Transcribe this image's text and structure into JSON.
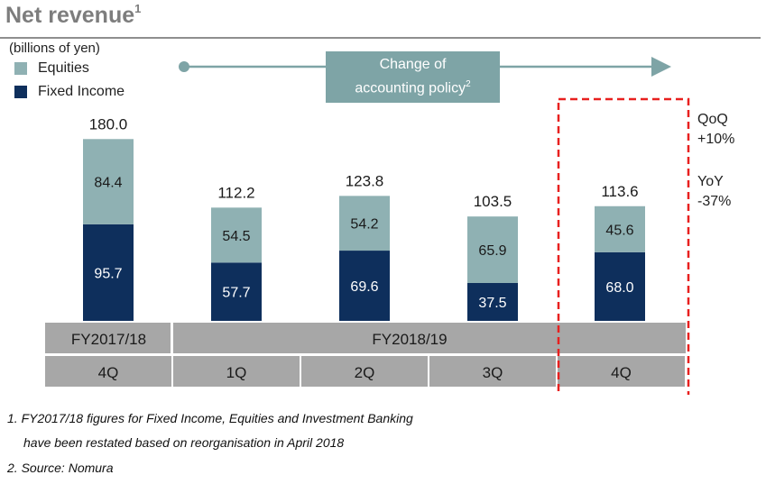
{
  "title": "Net revenue",
  "title_sup": "1",
  "unit": "(billions of yen)",
  "policy_note": {
    "line1": "Change of",
    "line2": "accounting policy",
    "sup": "2"
  },
  "side_note": {
    "qoq_label": "QoQ",
    "qoq_value": "+10%",
    "yoy_label": "YoY",
    "yoy_value": "-37%"
  },
  "footnotes": [
    "1. FY2017/18 figures for Fixed Income, Equities and Investment Banking",
    "have been restated based on reorganisation in April 2018",
    "2. Source: Nomura"
  ],
  "colors": {
    "equities": "#8fb1b3",
    "fixed_income": "#0e2f5c",
    "axis_band": "#a7a7a7",
    "highlight": "#e8201f",
    "arrow": "#7ea4a6"
  },
  "chart_data": {
    "type": "bar",
    "stacked": true,
    "categories": [
      "4Q",
      "1Q",
      "2Q",
      "3Q",
      "4Q"
    ],
    "fiscal_groups": [
      {
        "label": "FY2017/18",
        "categories": [
          "4Q"
        ]
      },
      {
        "label": "FY2018/19",
        "categories": [
          "1Q",
          "2Q",
          "3Q",
          "4Q"
        ]
      }
    ],
    "series": [
      {
        "name": "Fixed Income",
        "values": [
          95.7,
          57.7,
          69.6,
          37.5,
          68.0
        ]
      },
      {
        "name": "Equities",
        "values": [
          84.4,
          54.5,
          54.2,
          65.9,
          45.6
        ]
      }
    ],
    "totals": [
      180.0,
      112.2,
      123.8,
      103.5,
      113.6
    ],
    "value_labels": {
      "fixed_income": [
        "95.7",
        "57.7",
        "69.6",
        "37.5",
        "68.0"
      ],
      "equities": [
        "84.4",
        "54.5",
        "54.2",
        "65.9",
        "45.6"
      ],
      "totals": [
        "180.0",
        "112.2",
        "123.8",
        "103.5",
        "113.6"
      ]
    },
    "legend_position": "top-left",
    "highlighted_category_index": 4,
    "grid": false
  }
}
